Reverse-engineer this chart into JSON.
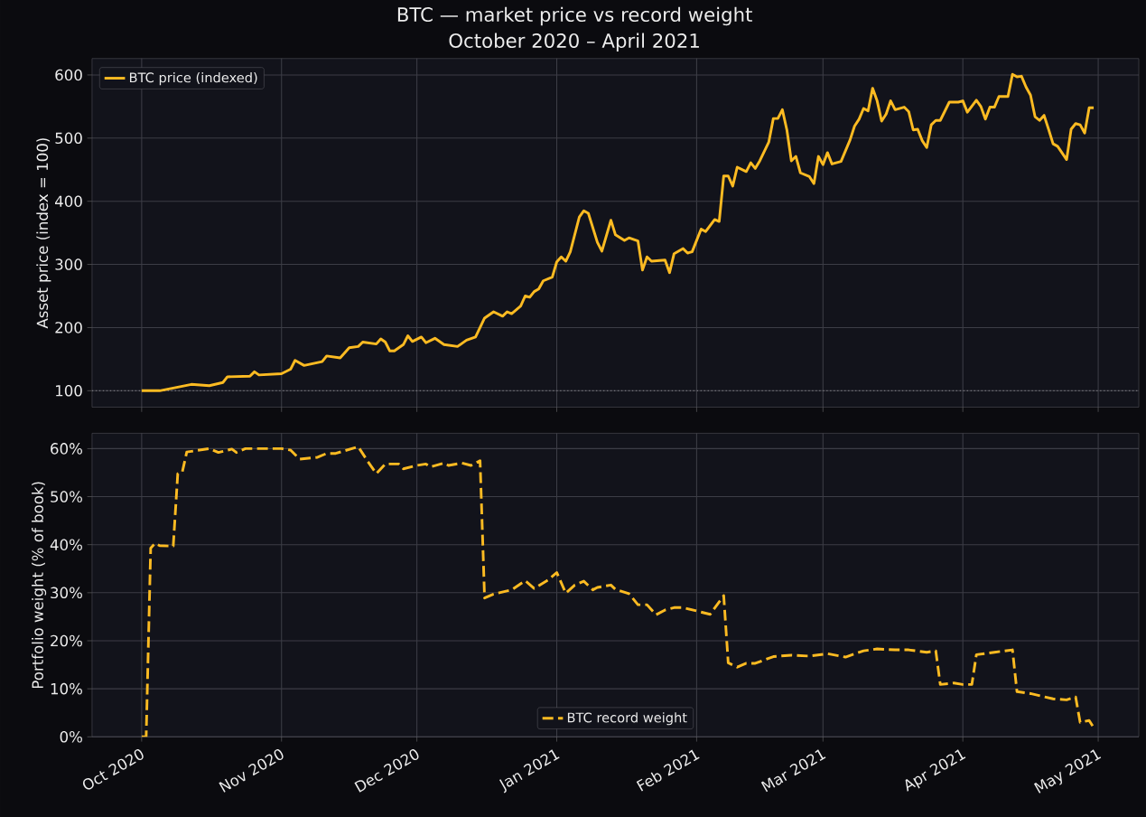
{
  "chart_data": [
    {
      "type": "line",
      "title": "BTC — market price vs record weight",
      "subtitle": "October 2020 – April 2021",
      "ylabel": "Asset price (index = 100)",
      "xlim": [
        "2020-09-20",
        "2021-05-10"
      ],
      "ylim": [
        74,
        626
      ],
      "yticks": [
        100,
        200,
        300,
        400,
        500,
        600
      ],
      "xticks": [
        {
          "value": "2020-10-01",
          "label": null
        },
        {
          "value": "2020-11-01",
          "label": null
        },
        {
          "value": "2020-12-01",
          "label": null
        },
        {
          "value": "2021-01-01",
          "label": null
        },
        {
          "value": "2021-02-01",
          "label": null
        },
        {
          "value": "2021-03-01",
          "label": null
        },
        {
          "value": "2021-04-01",
          "label": null
        },
        {
          "value": "2021-05-01",
          "label": null
        }
      ],
      "tick_labels": "y",
      "grid": true,
      "legend": "top left",
      "ref_lines": [
        {
          "axis": "y",
          "value": 100,
          "color": "#9a9aa0",
          "line_style": "dotted"
        }
      ],
      "series": [
        {
          "name": "BTC price (indexed)",
          "color": "#fdbb22",
          "line_style": "solid",
          "x": [
            "2020-10-01",
            "2020-10-05",
            "2020-10-12",
            "2020-10-16",
            "2020-10-19",
            "2020-10-20",
            "2020-10-25",
            "2020-10-26",
            "2020-10-27",
            "2020-11-01",
            "2020-11-03",
            "2020-11-04",
            "2020-11-06",
            "2020-11-10",
            "2020-11-11",
            "2020-11-14",
            "2020-11-16",
            "2020-11-18",
            "2020-11-19",
            "2020-11-22",
            "2020-11-23",
            "2020-11-24",
            "2020-11-25",
            "2020-11-26",
            "2020-11-28",
            "2020-11-29",
            "2020-11-30",
            "2020-12-02",
            "2020-12-03",
            "2020-12-05",
            "2020-12-07",
            "2020-12-10",
            "2020-12-12",
            "2020-12-14",
            "2020-12-16",
            "2020-12-18",
            "2020-12-20",
            "2020-12-21",
            "2020-12-22",
            "2020-12-24",
            "2020-12-25",
            "2020-12-26",
            "2020-12-27",
            "2020-12-28",
            "2020-12-29",
            "2020-12-31",
            "2021-01-01",
            "2021-01-02",
            "2021-01-03",
            "2021-01-04",
            "2021-01-06",
            "2021-01-07",
            "2021-01-08",
            "2021-01-10",
            "2021-01-11",
            "2021-01-13",
            "2021-01-14",
            "2021-01-16",
            "2021-01-17",
            "2021-01-19",
            "2021-01-20",
            "2021-01-21",
            "2021-01-22",
            "2021-01-25",
            "2021-01-26",
            "2021-01-27",
            "2021-01-29",
            "2021-01-30",
            "2021-01-31",
            "2021-02-02",
            "2021-02-03",
            "2021-02-05",
            "2021-02-06",
            "2021-02-07",
            "2021-02-08",
            "2021-02-09",
            "2021-02-10",
            "2021-02-12",
            "2021-02-13",
            "2021-02-14",
            "2021-02-15",
            "2021-02-17",
            "2021-02-18",
            "2021-02-19",
            "2021-02-20",
            "2021-02-21",
            "2021-02-22",
            "2021-02-23",
            "2021-02-24",
            "2021-02-26",
            "2021-02-27",
            "2021-02-28",
            "2021-03-01",
            "2021-03-02",
            "2021-03-03",
            "2021-03-05",
            "2021-03-07",
            "2021-03-08",
            "2021-03-09",
            "2021-03-10",
            "2021-03-11",
            "2021-03-12",
            "2021-03-13",
            "2021-03-14",
            "2021-03-15",
            "2021-03-16",
            "2021-03-17",
            "2021-03-19",
            "2021-03-20",
            "2021-03-21",
            "2021-03-22",
            "2021-03-23",
            "2021-03-24",
            "2021-03-25",
            "2021-03-26",
            "2021-03-27",
            "2021-03-29",
            "2021-03-31",
            "2021-04-01",
            "2021-04-02",
            "2021-04-04",
            "2021-04-05",
            "2021-04-06",
            "2021-04-07",
            "2021-04-08",
            "2021-04-09",
            "2021-04-11",
            "2021-04-12",
            "2021-04-13",
            "2021-04-14",
            "2021-04-15",
            "2021-04-16",
            "2021-04-17",
            "2021-04-18",
            "2021-04-19",
            "2021-04-20",
            "2021-04-21",
            "2021-04-22",
            "2021-04-24",
            "2021-04-25",
            "2021-04-26",
            "2021-04-27",
            "2021-04-28",
            "2021-04-29",
            "2021-04-30"
          ],
          "values": [
            100,
            100,
            110,
            108,
            113,
            122,
            123,
            130,
            125,
            127,
            134,
            148,
            140,
            146,
            155,
            152,
            168,
            170,
            177,
            174,
            182,
            177,
            163,
            163,
            173,
            187,
            178,
            185,
            176,
            183,
            173,
            170,
            180,
            185,
            215,
            225,
            218,
            225,
            222,
            234,
            250,
            248,
            257,
            261,
            274,
            280,
            304,
            312,
            305,
            320,
            375,
            385,
            381,
            335,
            321,
            370,
            347,
            338,
            342,
            337,
            291,
            312,
            305,
            307,
            287,
            317,
            325,
            318,
            320,
            356,
            352,
            371,
            368,
            440,
            440,
            424,
            454,
            447,
            461,
            452,
            464,
            494,
            531,
            531,
            545,
            513,
            464,
            471,
            445,
            439,
            428,
            471,
            458,
            477,
            459,
            463,
            497,
            519,
            530,
            547,
            543,
            579,
            559,
            527,
            538,
            559,
            545,
            549,
            542,
            513,
            514,
            496,
            485,
            521,
            528,
            528,
            557,
            557,
            559,
            541,
            560,
            550,
            530,
            549,
            549,
            566,
            566,
            601,
            597,
            598,
            581,
            568,
            534,
            528,
            536,
            514,
            491,
            487,
            466,
            514,
            523,
            521,
            508,
            548,
            548
          ]
        }
      ]
    },
    {
      "type": "line",
      "ylabel": "Portfolio weight (% of book)",
      "xlim": [
        "2020-09-20",
        "2021-05-10"
      ],
      "ylim": [
        0,
        63.2
      ],
      "yticks": [
        {
          "value": 0,
          "label": "0%"
        },
        {
          "value": 10,
          "label": "10%"
        },
        {
          "value": 20,
          "label": "20%"
        },
        {
          "value": 30,
          "label": "30%"
        },
        {
          "value": 40,
          "label": "40%"
        },
        {
          "value": 50,
          "label": "50%"
        },
        {
          "value": 60,
          "label": "60%"
        }
      ],
      "xticks": [
        {
          "value": "2020-10-01",
          "label": "Oct 2020"
        },
        {
          "value": "2020-11-01",
          "label": "Nov 2020"
        },
        {
          "value": "2020-12-01",
          "label": "Dec 2020"
        },
        {
          "value": "2021-01-01",
          "label": "Jan 2021"
        },
        {
          "value": "2021-02-01",
          "label": "Feb 2021"
        },
        {
          "value": "2021-03-01",
          "label": "Mar 2021"
        },
        {
          "value": "2021-04-01",
          "label": "Apr 2021"
        },
        {
          "value": "2021-05-01",
          "label": "May 2021"
        }
      ],
      "grid": true,
      "legend": "bottom",
      "series": [
        {
          "name": "BTC record weight",
          "color": "#fdbb22",
          "line_style": "dashed",
          "x": [
            "2020-10-01",
            "2020-10-02",
            "2020-10-03",
            "2020-10-04",
            "2020-10-05",
            "2020-10-08",
            "2020-10-09",
            "2020-10-10",
            "2020-10-11",
            "2020-10-16",
            "2020-10-18",
            "2020-10-21",
            "2020-10-22",
            "2020-10-24",
            "2020-11-01",
            "2020-11-03",
            "2020-11-05",
            "2020-11-09",
            "2020-11-11",
            "2020-11-13",
            "2020-11-18",
            "2020-11-20",
            "2020-11-22",
            "2020-11-24",
            "2020-11-27",
            "2020-11-28",
            "2020-12-01",
            "2020-12-03",
            "2020-12-04",
            "2020-12-07",
            "2020-12-08",
            "2020-12-11",
            "2020-12-13",
            "2020-12-15",
            "2020-12-16",
            "2020-12-18",
            "2020-12-22",
            "2020-12-25",
            "2020-12-27",
            "2020-12-30",
            "2021-01-01",
            "2021-01-03",
            "2021-01-05",
            "2021-01-07",
            "2021-01-09",
            "2021-01-10",
            "2021-01-13",
            "2021-01-14",
            "2021-01-17",
            "2021-01-19",
            "2021-01-21",
            "2021-01-23",
            "2021-01-25",
            "2021-01-27",
            "2021-01-29",
            "2021-02-04",
            "2021-02-07",
            "2021-02-08",
            "2021-02-10",
            "2021-02-12",
            "2021-02-14",
            "2021-02-18",
            "2021-02-22",
            "2021-02-26",
            "2021-03-02",
            "2021-03-06",
            "2021-03-10",
            "2021-03-13",
            "2021-03-17",
            "2021-03-20",
            "2021-03-24",
            "2021-03-26",
            "2021-03-27",
            "2021-03-30",
            "2021-04-01",
            "2021-04-03",
            "2021-04-04",
            "2021-04-08",
            "2021-04-12",
            "2021-04-13",
            "2021-04-16",
            "2021-04-21",
            "2021-04-24",
            "2021-04-26",
            "2021-04-27",
            "2021-04-29",
            "2021-04-30"
          ],
          "values": [
            0,
            0,
            39.3,
            40.3,
            39.8,
            39.7,
            54.8,
            55.1,
            59.3,
            60,
            59.2,
            59.9,
            59.2,
            60,
            60,
            59.7,
            57.8,
            58.2,
            59,
            59,
            60.4,
            57.5,
            54.8,
            56.8,
            56.8,
            55.8,
            56.5,
            56.8,
            56.2,
            57,
            56.5,
            57,
            56.5,
            57.5,
            28.9,
            29.7,
            30.6,
            32.5,
            30.9,
            32.6,
            34.2,
            29.9,
            31.6,
            32.4,
            30.6,
            31.1,
            31.6,
            30.7,
            29.8,
            27.5,
            27.5,
            25.4,
            26.4,
            26.9,
            26.9,
            25.5,
            29.4,
            15.4,
            14.5,
            15.3,
            15.3,
            16.7,
            17,
            16.8,
            17.3,
            16.6,
            17.9,
            18.3,
            18.1,
            18.1,
            17.6,
            17.9,
            10.9,
            11.2,
            10.9,
            10.9,
            17.1,
            17.6,
            18.1,
            9.4,
            9.0,
            7.9,
            7.7,
            8.3,
            3.0,
            3.4,
            1.9
          ]
        }
      ]
    }
  ]
}
